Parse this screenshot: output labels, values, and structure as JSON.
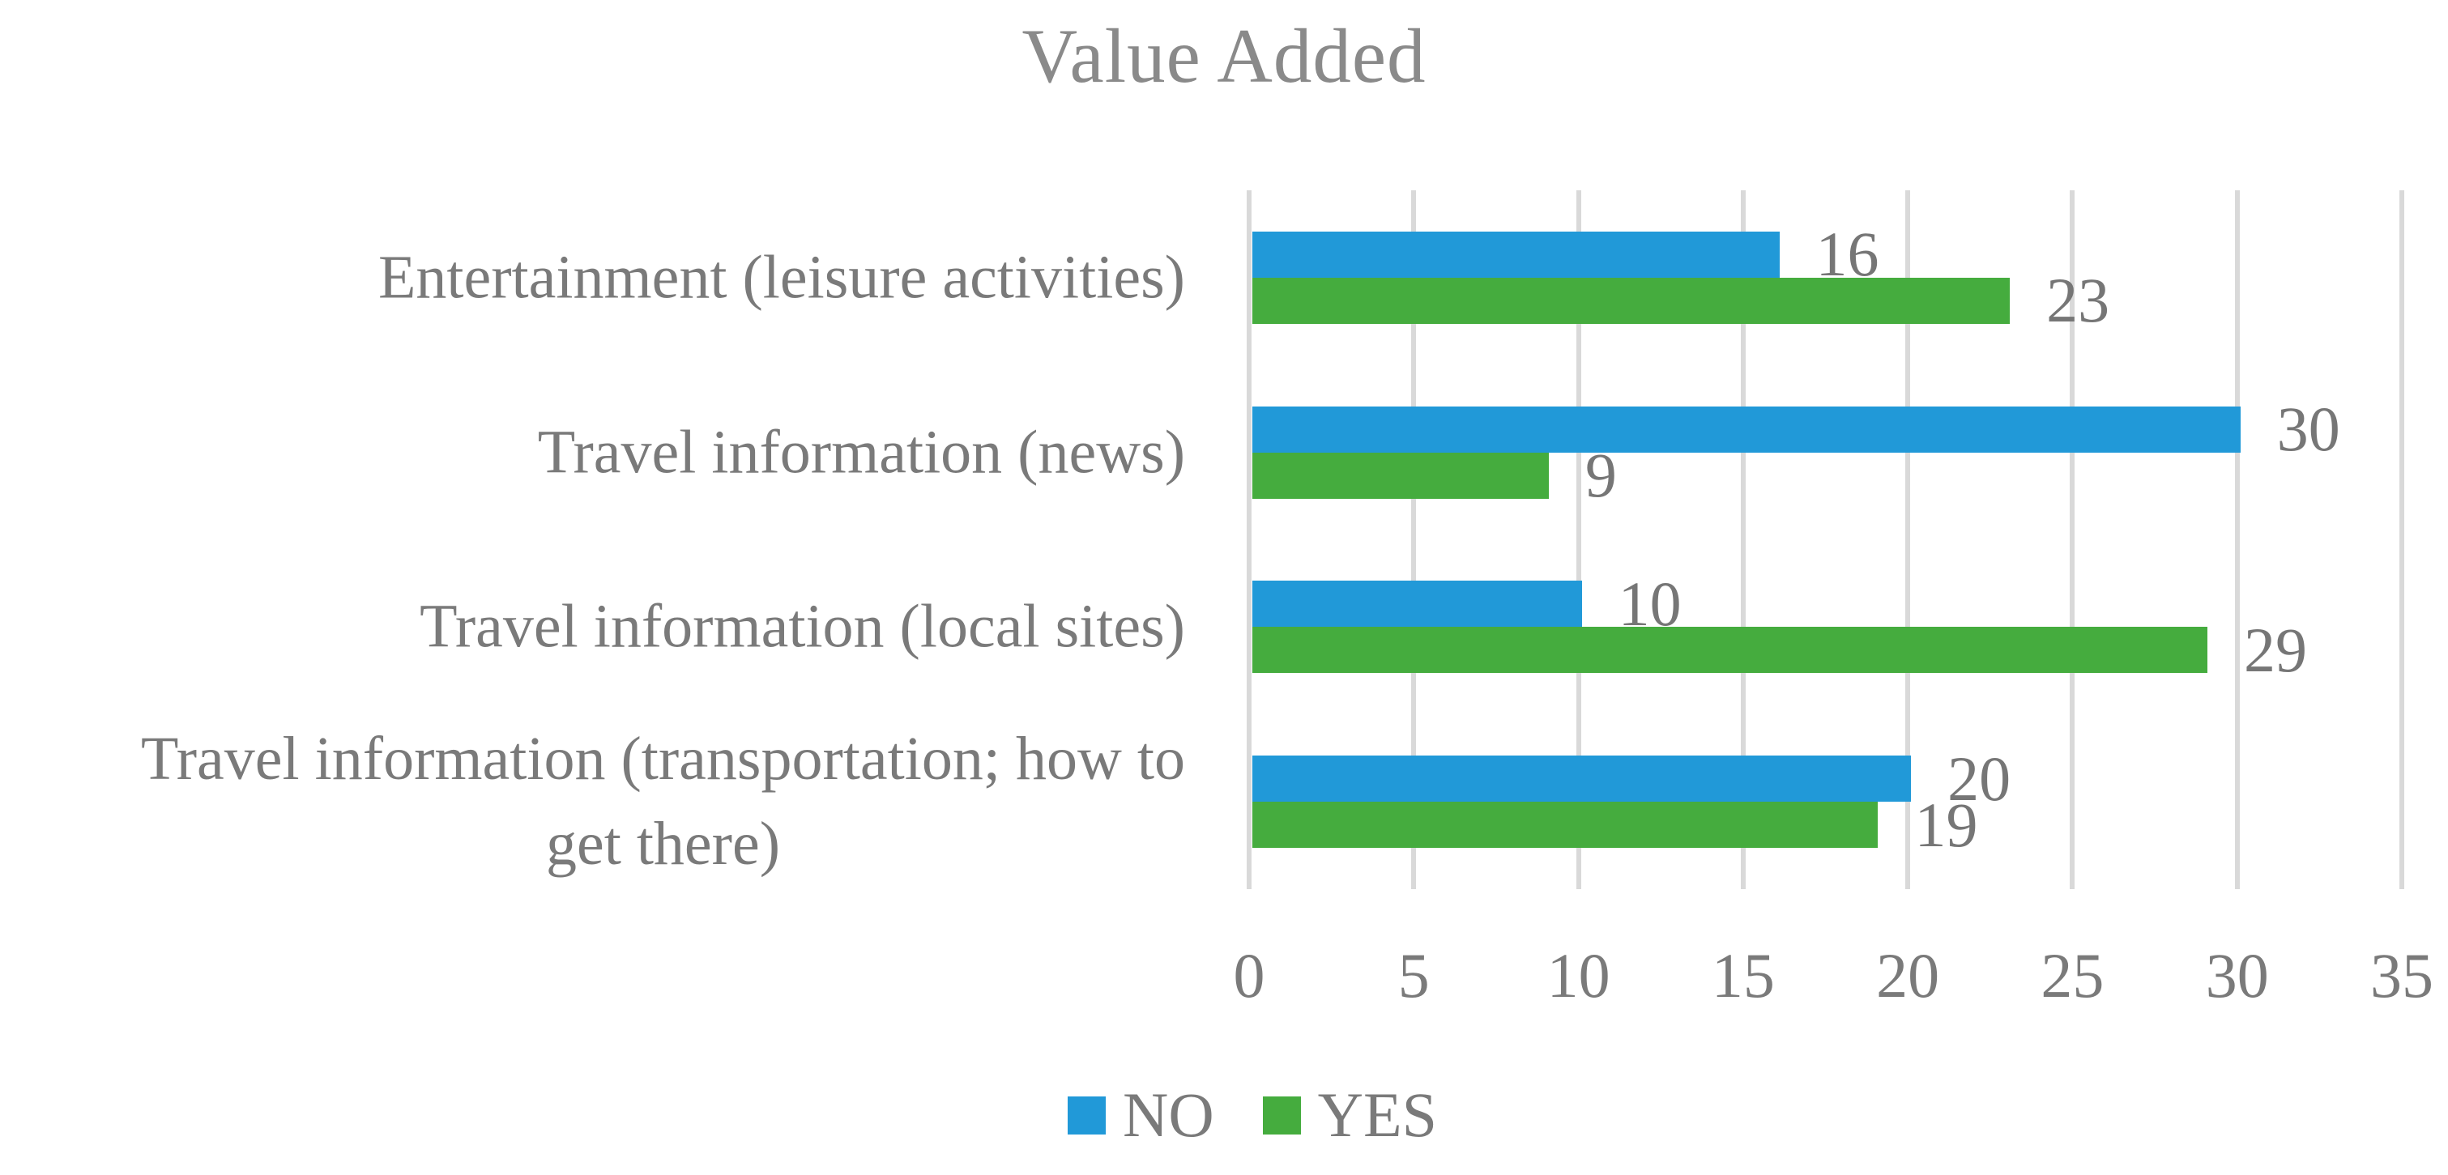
{
  "chart_data": {
    "type": "bar",
    "orientation": "horizontal",
    "title": "Value Added",
    "categories": [
      "Entertainment (leisure activities)",
      "Travel information (news)",
      "Travel information (local sites)",
      "Travel information (transportation; how to\nget there)"
    ],
    "series": [
      {
        "name": "NO",
        "color": "#2199d8",
        "values": [
          16,
          30,
          10,
          20
        ]
      },
      {
        "name": "YES",
        "color": "#45ac3e",
        "values": [
          23,
          9,
          29,
          19
        ]
      }
    ],
    "xlim": [
      0,
      35
    ],
    "x_ticks": [
      "0",
      "5",
      "10",
      "15",
      "20",
      "25",
      "30",
      "35"
    ],
    "grid": "vertical-gridlines-on",
    "legend_position": "bottom",
    "data_labels": true,
    "category_order": "top-to-bottom",
    "colors": {
      "title_text": "#8a8a8a",
      "axis_text": "#7a7a7a",
      "data_label_text": "#767676",
      "gridline": "#d9d9d9"
    }
  }
}
